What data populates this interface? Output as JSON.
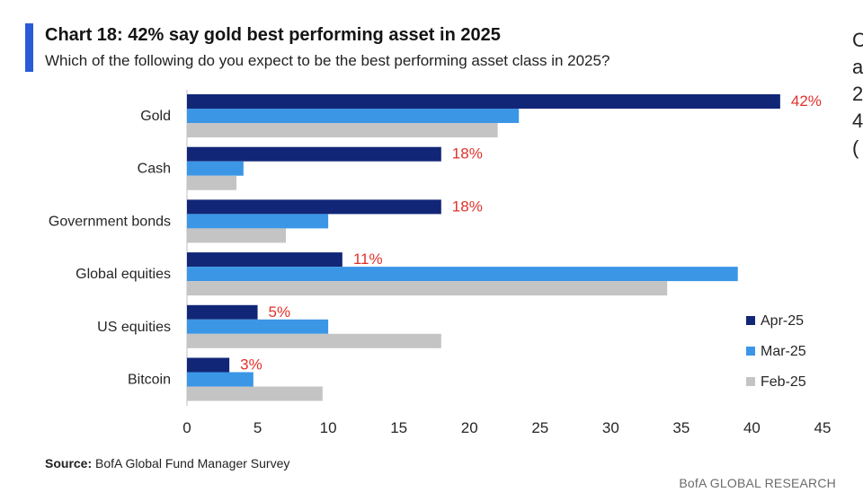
{
  "header": {
    "title": "Chart 18: 42% say gold best performing asset in 2025",
    "subtitle": "Which of the following do you expect to be the best performing asset class in 2025?"
  },
  "footer": {
    "source_label": "Source:",
    "source_text": "BofA Global Fund Manager Survey",
    "brand": "BofA GLOBAL RESEARCH"
  },
  "side_fragment": [
    "C",
    "a",
    "2",
    "4",
    "("
  ],
  "colors": {
    "Apr-25": "#122677",
    "Mar-25": "#3b96e6",
    "Feb-25": "#c4c4c4",
    "label": "#e0312b",
    "accent": "#2a5bd7"
  },
  "chart_data": {
    "type": "bar",
    "orientation": "horizontal",
    "categories": [
      "Gold",
      "Cash",
      "Government bonds",
      "Global equities",
      "US equities",
      "Bitcoin"
    ],
    "series": [
      {
        "name": "Apr-25",
        "values": [
          42,
          18,
          18,
          11,
          5,
          3
        ],
        "labels": [
          "42%",
          "18%",
          "18%",
          "11%",
          "5%",
          "3%"
        ]
      },
      {
        "name": "Mar-25",
        "values": [
          23.5,
          4,
          10,
          39,
          10,
          4.7
        ]
      },
      {
        "name": "Feb-25",
        "values": [
          22,
          3.5,
          7,
          34,
          18,
          9.6
        ]
      }
    ],
    "xlim": [
      0,
      45
    ],
    "xticks": [
      "0",
      "5",
      "10",
      "15",
      "20",
      "25",
      "30",
      "35",
      "40",
      "45"
    ],
    "legend_position": "bottom-right",
    "grid": false
  }
}
